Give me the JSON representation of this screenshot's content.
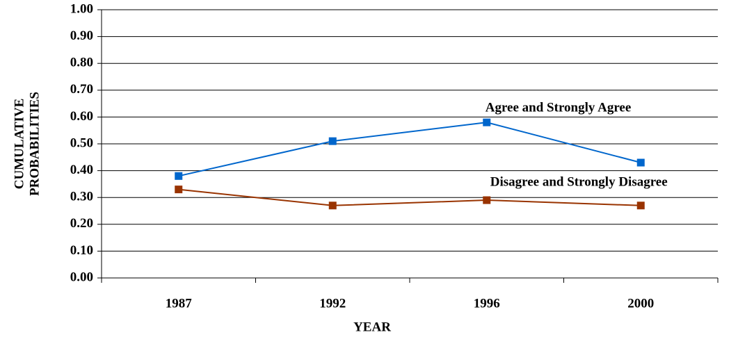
{
  "chart_data": {
    "type": "line",
    "categories": [
      "1987",
      "1992",
      "1996",
      "2000"
    ],
    "series": [
      {
        "name": "Agree and Strongly Agree",
        "color": "#0066cc",
        "values": [
          0.38,
          0.51,
          0.58,
          0.43
        ]
      },
      {
        "name": "Disagree and Strongly Disagree",
        "color": "#993300",
        "values": [
          0.33,
          0.27,
          0.29,
          0.27
        ]
      }
    ],
    "ylim": [
      0,
      1
    ],
    "yticks": [
      {
        "value": 0,
        "label": "0.00"
      },
      {
        "value": 0.1,
        "label": "0.10"
      },
      {
        "value": 0.2,
        "label": "0.20"
      },
      {
        "value": 0.3,
        "label": "0.30"
      },
      {
        "value": 0.4,
        "label": "0.40"
      },
      {
        "value": 0.5,
        "label": "0.50"
      },
      {
        "value": 0.6,
        "label": "0.60"
      },
      {
        "value": 0.7,
        "label": "0.70"
      },
      {
        "value": 0.8,
        "label": "0.80"
      },
      {
        "value": 0.9,
        "label": "0.90"
      },
      {
        "value": 1,
        "label": "1.00"
      }
    ],
    "grid": true,
    "xlabel": "YEAR",
    "ylabel": [
      "CUMULATIVE",
      "PROBABILITIES"
    ]
  }
}
